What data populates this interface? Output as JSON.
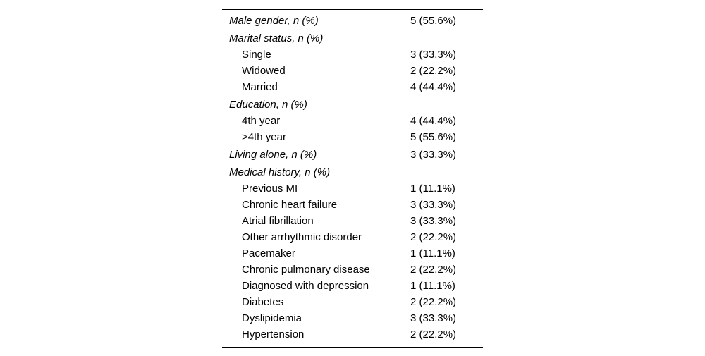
{
  "colors": {
    "background": "#ffffff",
    "text": "#000000",
    "rule": "#000000"
  },
  "table": {
    "rows": [
      {
        "label": "Male gender, n (%)",
        "value": "5 (55.6%)",
        "style": "category"
      },
      {
        "label": "Marital status, n (%)",
        "value": "",
        "style": "category"
      },
      {
        "label": "Single",
        "value": "3 (33.3%)",
        "style": "item"
      },
      {
        "label": "Widowed",
        "value": "2 (22.2%)",
        "style": "item"
      },
      {
        "label": "Married",
        "value": "4 (44.4%)",
        "style": "item"
      },
      {
        "label": "Education, n (%)",
        "value": "",
        "style": "category"
      },
      {
        "label": "4th year",
        "value": "4 (44.4%)",
        "style": "item"
      },
      {
        "label": ">4th year",
        "value": "5 (55.6%)",
        "style": "item"
      },
      {
        "label": "Living alone, n (%)",
        "value": "3 (33.3%)",
        "style": "category"
      },
      {
        "label": "Medical history, n (%)",
        "value": "",
        "style": "category"
      },
      {
        "label": "Previous MI",
        "value": "1 (11.1%)",
        "style": "item"
      },
      {
        "label": "Chronic heart failure",
        "value": "3 (33.3%)",
        "style": "item"
      },
      {
        "label": "Atrial fibrillation",
        "value": "3 (33.3%)",
        "style": "item"
      },
      {
        "label": "Other arrhythmic disorder",
        "value": "2 (22.2%)",
        "style": "item"
      },
      {
        "label": "Pacemaker",
        "value": "1 (11.1%)",
        "style": "item"
      },
      {
        "label": "Chronic pulmonary disease",
        "value": "2 (22.2%)",
        "style": "item"
      },
      {
        "label": "Diagnosed with depression",
        "value": "1 (11.1%)",
        "style": "item"
      },
      {
        "label": "Diabetes",
        "value": "2 (22.2%)",
        "style": "item"
      },
      {
        "label": "Dyslipidemia",
        "value": "3 (33.3%)",
        "style": "item"
      },
      {
        "label": "Hypertension",
        "value": "2 (22.2%)",
        "style": "item"
      }
    ]
  }
}
